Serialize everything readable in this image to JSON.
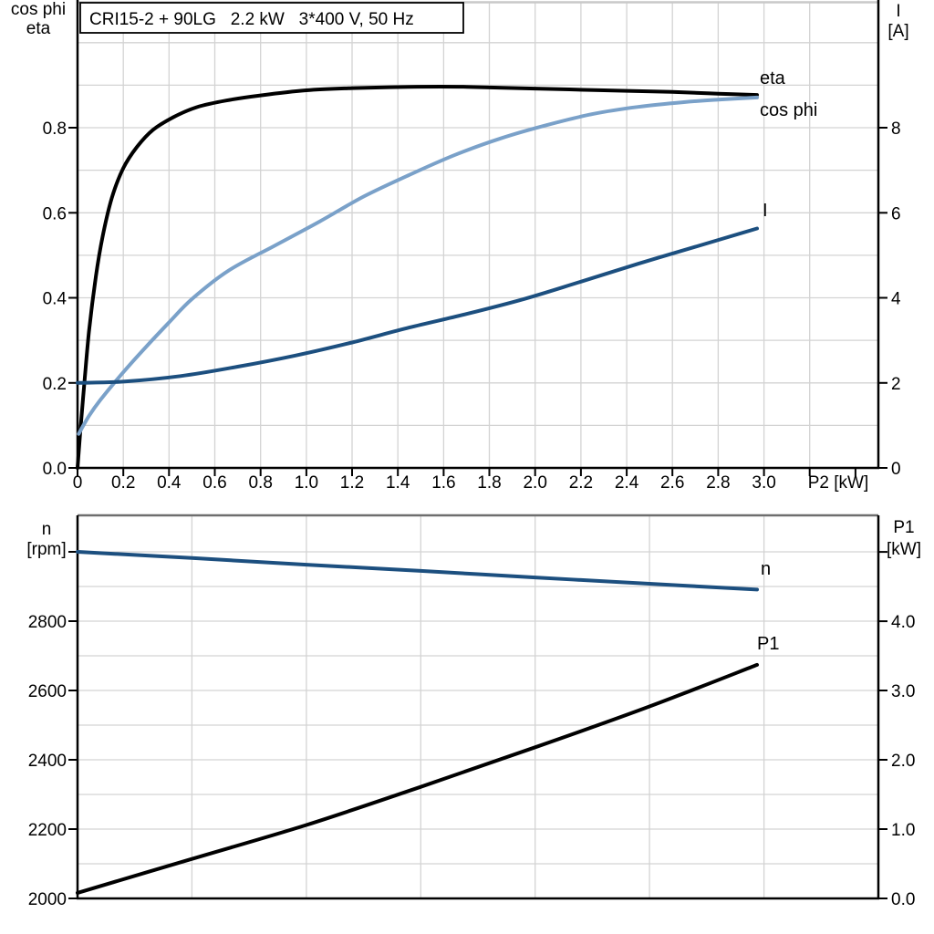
{
  "panel": {
    "background": "#ffffff"
  },
  "colors": {
    "grid": "#d3d3d3",
    "axis": "#000000",
    "dark_blue": "#1c4f7f",
    "light_blue": "#7aa1c9",
    "lower_top_border": "#6e6e6e",
    "upper_top_border": "#c9c9c9"
  },
  "chart_data": [
    {
      "type": "line",
      "title": "CRI15-2 + 90LG   2.2 kW   3*400 V, 50 Hz",
      "x_label": "P2 [kW]",
      "x_range": [
        0,
        3.5
      ],
      "x_grid_step": 0.2,
      "x_ticks": [
        {
          "v": 0.0,
          "label": "0"
        },
        {
          "v": 0.2,
          "label": "0.2"
        },
        {
          "v": 0.4,
          "label": "0.4"
        },
        {
          "v": 0.6,
          "label": "0.6"
        },
        {
          "v": 0.8,
          "label": "0.8"
        },
        {
          "v": 1.0,
          "label": "1.0"
        },
        {
          "v": 1.2,
          "label": "1.2"
        },
        {
          "v": 1.4,
          "label": "1.4"
        },
        {
          "v": 1.6,
          "label": "1.6"
        },
        {
          "v": 1.8,
          "label": "1.8"
        },
        {
          "v": 2.0,
          "label": "2.0"
        },
        {
          "v": 2.2,
          "label": "2.2"
        },
        {
          "v": 2.4,
          "label": "2.4"
        },
        {
          "v": 2.6,
          "label": "2.6"
        },
        {
          "v": 2.8,
          "label": "2.8"
        },
        {
          "v": 3.0,
          "label": "3.0"
        },
        {
          "v": 3.2,
          "label": ""
        },
        {
          "v": 3.4,
          "label": ""
        }
      ],
      "left_axis": {
        "title_lines": [
          "cos phi",
          "eta"
        ],
        "range": [
          0,
          1.1
        ],
        "grid_step": 0.1,
        "ticks": [
          {
            "v": 0.0,
            "label": "0.0"
          },
          {
            "v": 0.2,
            "label": "0.2"
          },
          {
            "v": 0.4,
            "label": "0.4"
          },
          {
            "v": 0.6,
            "label": "0.6"
          },
          {
            "v": 0.8,
            "label": "0.8"
          }
        ]
      },
      "right_axis": {
        "title_lines": [
          "I",
          "[A]"
        ],
        "range": [
          0,
          11
        ],
        "ticks": [
          {
            "v": 0,
            "label": "0"
          },
          {
            "v": 2,
            "label": "2"
          },
          {
            "v": 4,
            "label": "4"
          },
          {
            "v": 6,
            "label": "6"
          },
          {
            "v": 8,
            "label": "8"
          }
        ]
      },
      "series": [
        {
          "name": "eta",
          "color": "#000000",
          "axis": "left",
          "label_pos": [
            833,
            92
          ],
          "points": [
            [
              0,
              0
            ],
            [
              0.012,
              0.085
            ],
            [
              0.03,
              0.2
            ],
            [
              0.05,
              0.32
            ],
            [
              0.08,
              0.45
            ],
            [
              0.11,
              0.545
            ],
            [
              0.15,
              0.635
            ],
            [
              0.2,
              0.705
            ],
            [
              0.26,
              0.755
            ],
            [
              0.33,
              0.795
            ],
            [
              0.42,
              0.825
            ],
            [
              0.52,
              0.848
            ],
            [
              0.65,
              0.864
            ],
            [
              0.8,
              0.876
            ],
            [
              1.0,
              0.888
            ],
            [
              1.2,
              0.893
            ],
            [
              1.45,
              0.896
            ],
            [
              1.7,
              0.896
            ],
            [
              2.0,
              0.892
            ],
            [
              2.3,
              0.888
            ],
            [
              2.6,
              0.884
            ],
            [
              2.8,
              0.88
            ],
            [
              2.97,
              0.877
            ]
          ]
        },
        {
          "name": "cos phi",
          "color": "#7aa1c9",
          "axis": "left",
          "label_pos": [
            833,
            127
          ],
          "points": [
            [
              0.005,
              0.08
            ],
            [
              0.05,
              0.122
            ],
            [
              0.1,
              0.16
            ],
            [
              0.2,
              0.225
            ],
            [
              0.3,
              0.285
            ],
            [
              0.4,
              0.342
            ],
            [
              0.5,
              0.397
            ],
            [
              0.66,
              0.464
            ],
            [
              0.86,
              0.522
            ],
            [
              1.06,
              0.58
            ],
            [
              1.25,
              0.638
            ],
            [
              1.45,
              0.689
            ],
            [
              1.65,
              0.736
            ],
            [
              1.85,
              0.775
            ],
            [
              2.05,
              0.806
            ],
            [
              2.25,
              0.832
            ],
            [
              2.45,
              0.849
            ],
            [
              2.65,
              0.86
            ],
            [
              2.8,
              0.866
            ],
            [
              2.97,
              0.871
            ]
          ]
        },
        {
          "name": "I",
          "color": "#1c4f7f",
          "axis": "right",
          "label_pos": [
            836,
            237
          ],
          "points": [
            [
              0,
              2.0
            ],
            [
              0.2,
              2.03
            ],
            [
              0.45,
              2.16
            ],
            [
              0.7,
              2.38
            ],
            [
              0.95,
              2.64
            ],
            [
              1.2,
              2.95
            ],
            [
              1.45,
              3.3
            ],
            [
              1.7,
              3.62
            ],
            [
              1.95,
              3.97
            ],
            [
              2.2,
              4.38
            ],
            [
              2.45,
              4.8
            ],
            [
              2.7,
              5.2
            ],
            [
              2.97,
              5.63
            ]
          ]
        }
      ]
    },
    {
      "type": "line",
      "title": "",
      "x_label": "",
      "x_range": [
        0,
        3.5
      ],
      "x_grid_step": 0.5,
      "x_ticks": [],
      "left_axis": {
        "title_lines": [
          "n",
          "[rpm]"
        ],
        "range": [
          2000,
          3105
        ],
        "grid_step": 100,
        "ticks": [
          {
            "v": 2000,
            "label": "2000"
          },
          {
            "v": 2200,
            "label": "2200"
          },
          {
            "v": 2400,
            "label": "2400"
          },
          {
            "v": 2600,
            "label": "2600"
          },
          {
            "v": 2800,
            "label": "2800"
          },
          {
            "v": 3000,
            "label": ""
          }
        ]
      },
      "right_axis": {
        "title_lines": [
          "P1",
          "[kW]"
        ],
        "range": [
          0,
          5.526
        ],
        "ticks": [
          {
            "v": 0,
            "label": "0.0"
          },
          {
            "v": 1,
            "label": "1.0"
          },
          {
            "v": 2,
            "label": "2.0"
          },
          {
            "v": 3,
            "label": "3.0"
          },
          {
            "v": 4,
            "label": "4.0"
          },
          {
            "v": 5,
            "label": ""
          }
        ]
      },
      "series": [
        {
          "name": "n",
          "color": "#1c4f7f",
          "axis": "left",
          "label_pos": [
            834,
            630
          ],
          "points": [
            [
              0,
              3000
            ],
            [
              0.5,
              2982
            ],
            [
              1.0,
              2963
            ],
            [
              1.5,
              2945
            ],
            [
              2.0,
              2926
            ],
            [
              2.5,
              2908
            ],
            [
              2.97,
              2891
            ]
          ]
        },
        {
          "name": "P1",
          "color": "#000000",
          "axis": "right",
          "label_pos": [
            830,
            712
          ],
          "points": [
            [
              0,
              0.08
            ],
            [
              0.5,
              0.57
            ],
            [
              1.0,
              1.06
            ],
            [
              1.5,
              1.61
            ],
            [
              2.0,
              2.18
            ],
            [
              2.5,
              2.77
            ],
            [
              2.97,
              3.37
            ]
          ]
        }
      ]
    }
  ]
}
